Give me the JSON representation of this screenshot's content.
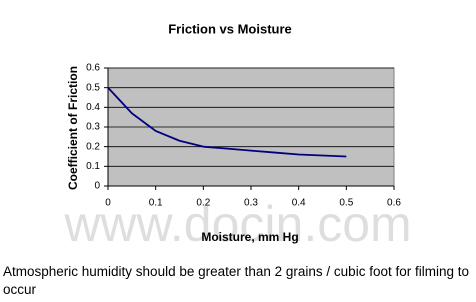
{
  "chart_data": {
    "type": "line",
    "title": "Friction vs Moisture",
    "x_label": "Moisture, mm Hg",
    "y_label": "Coefficient of Friction",
    "x": [
      0,
      0.05,
      0.1,
      0.15,
      0.2,
      0.25,
      0.3,
      0.35,
      0.4,
      0.45,
      0.5
    ],
    "series": [
      {
        "name": "Friction",
        "color": "#000080",
        "values": [
          0.5,
          0.37,
          0.28,
          0.23,
          0.2,
          0.19,
          0.18,
          0.17,
          0.16,
          0.155,
          0.15
        ]
      }
    ],
    "xlim": [
      0,
      0.6
    ],
    "xticks": [
      0,
      0.1,
      0.2,
      0.3,
      0.4,
      0.5,
      0.6
    ],
    "ylim": [
      0,
      0.6
    ],
    "yticks": [
      0,
      0.1,
      0.2,
      0.3,
      0.4,
      0.5,
      0.6
    ],
    "grid": true,
    "plot_background": "#c0c0c0"
  },
  "watermark": "www.docin.com",
  "caption": "Atmospheric humidity should be greater than 2 grains / cubic foot for filming to occur"
}
